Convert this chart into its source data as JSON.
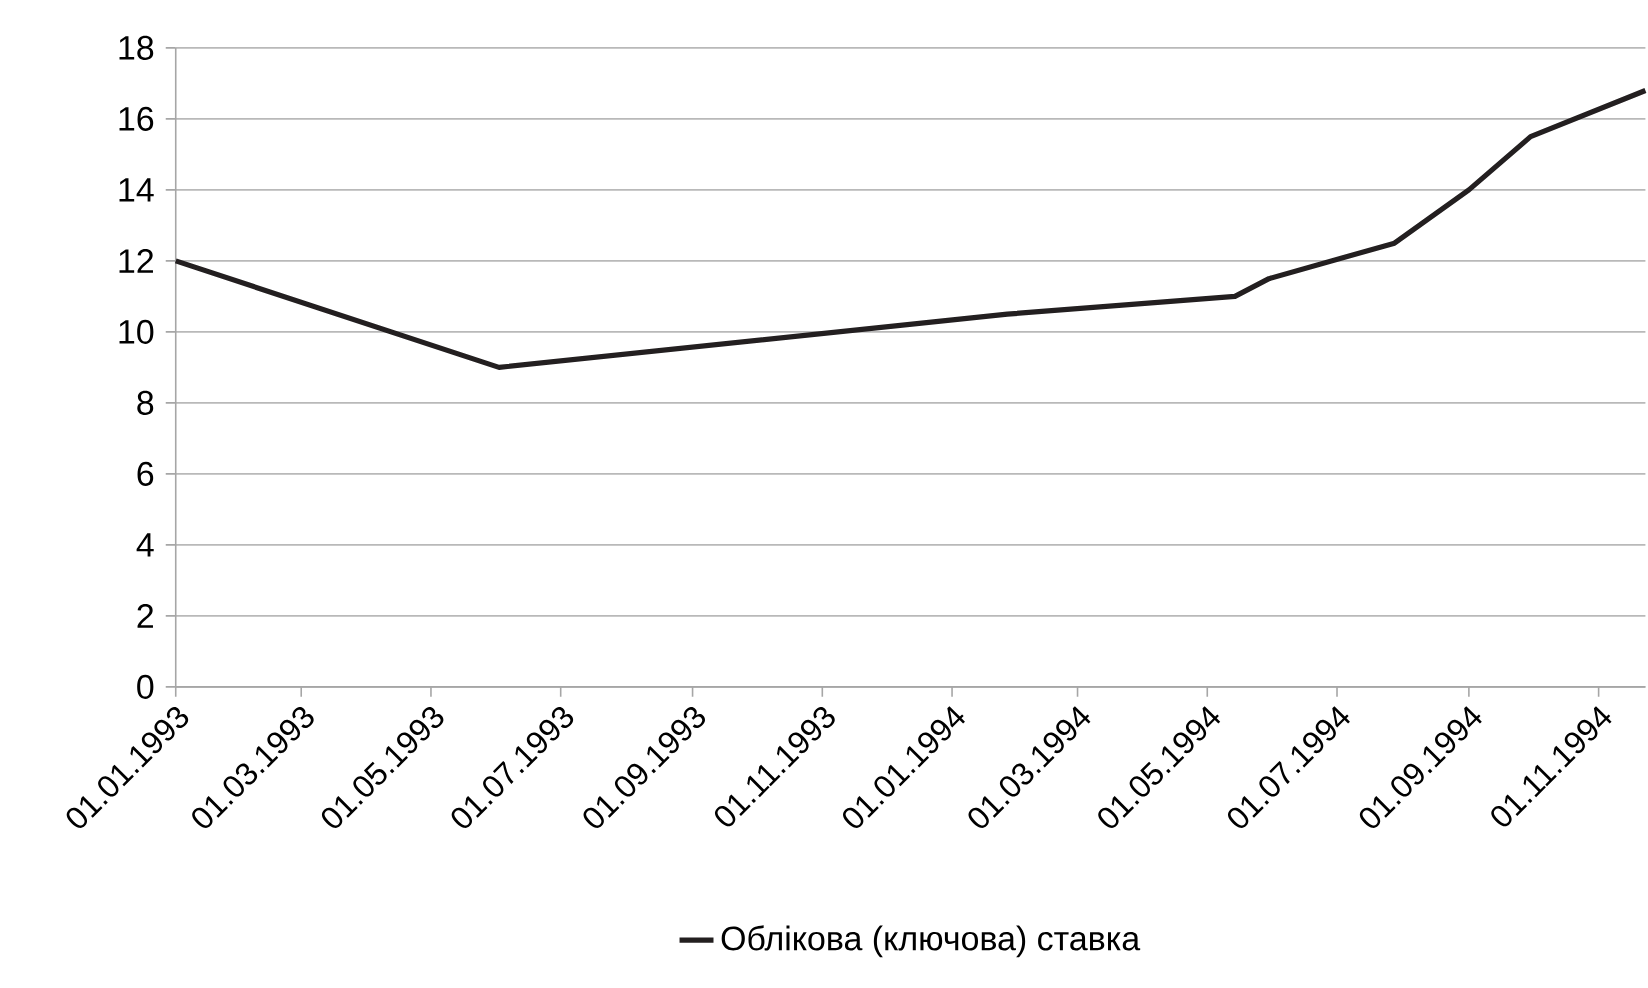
{
  "chart_data": {
    "type": "line",
    "x": [
      "1993-01-01",
      "1993-06-02",
      "1994-01-27",
      "1994-05-14",
      "1994-05-30",
      "1994-07-28",
      "1994-09-01",
      "1994-09-30",
      "1994-11-23"
    ],
    "series": [
      {
        "name": "Облікова (ключова) ставка",
        "color": "#231f20",
        "values": [
          12,
          9,
          10.5,
          11,
          11.5,
          12.5,
          14,
          15.5,
          16.8
        ]
      }
    ],
    "xlim": [
      "1993-01-01",
      "1994-11-23"
    ],
    "xticks": [
      {
        "value": "1993-01-01",
        "label": "01.01.1993"
      },
      {
        "value": "1993-03-01",
        "label": "01.03.1993"
      },
      {
        "value": "1993-05-01",
        "label": "01.05.1993"
      },
      {
        "value": "1993-07-01",
        "label": "01.07.1993"
      },
      {
        "value": "1993-09-01",
        "label": "01.09.1993"
      },
      {
        "value": "1993-11-01",
        "label": "01.11.1993"
      },
      {
        "value": "1994-01-01",
        "label": "01.01.1994"
      },
      {
        "value": "1994-03-01",
        "label": "01.03.1994"
      },
      {
        "value": "1994-05-01",
        "label": "01.05.1994"
      },
      {
        "value": "1994-07-01",
        "label": "01.07.1994"
      },
      {
        "value": "1994-09-01",
        "label": "01.09.1994"
      },
      {
        "value": "1994-11-01",
        "label": "01.11.1994"
      }
    ],
    "ylim": [
      0,
      18
    ],
    "yticks": [
      0,
      2,
      4,
      6,
      8,
      10,
      12,
      14,
      16,
      18
    ],
    "grid": "y",
    "legend": "bottom"
  }
}
